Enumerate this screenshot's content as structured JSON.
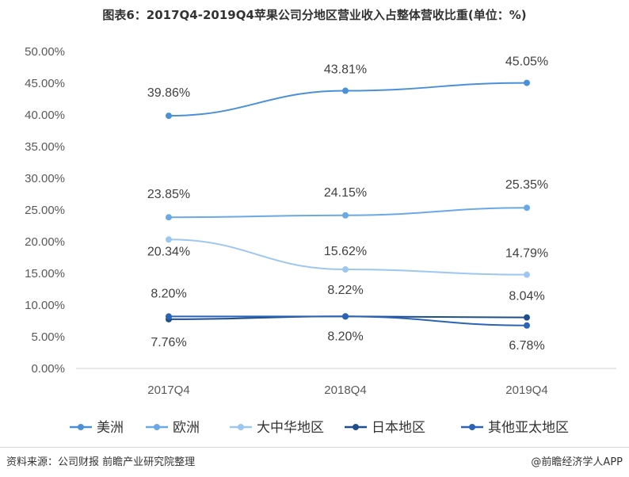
{
  "title": "图表6：2017Q4-2019Q4苹果公司分地区营业收入占整体营收比重(单位：%)",
  "footer": {
    "source": "资料来源：公司财报 前瞻产业研究院整理",
    "brand": "@前瞻经济学人APP"
  },
  "chart_data": {
    "type": "line",
    "title": "图表6：2017Q4-2019Q4苹果公司分地区营业收入占整体营收比重(单位：%)",
    "x": [
      "2017Q4",
      "2018Q4",
      "2019Q4"
    ],
    "ylim": [
      0,
      50
    ],
    "yticks": [
      "0.00%",
      "5.00%",
      "10.00%",
      "15.00%",
      "20.00%",
      "25.00%",
      "30.00%",
      "35.00%",
      "40.00%",
      "45.00%",
      "50.00%"
    ],
    "grid": false,
    "legend_position": "bottom",
    "series": [
      {
        "name": "美洲",
        "values": [
          39.86,
          43.81,
          45.05
        ],
        "labels": [
          "39.86%",
          "43.81%",
          "45.05%"
        ],
        "color": "#4a90d9"
      },
      {
        "name": "欧洲",
        "values": [
          23.85,
          24.15,
          25.35
        ],
        "labels": [
          "23.85%",
          "24.15%",
          "25.35%"
        ],
        "color": "#6aa8e6"
      },
      {
        "name": "大中华地区",
        "values": [
          20.34,
          15.62,
          14.79
        ],
        "labels": [
          "20.34%",
          "15.62%",
          "14.79%"
        ],
        "color": "#9cc7f0"
      },
      {
        "name": "日本地区",
        "values": [
          7.76,
          8.22,
          8.04
        ],
        "labels": [
          "7.76%",
          "8.22%",
          "8.04%"
        ],
        "color": "#1f4e8c"
      },
      {
        "name": "其他亚太地区",
        "values": [
          8.2,
          8.2,
          6.78
        ],
        "labels": [
          "8.20%",
          "8.20%",
          "6.78%"
        ],
        "color": "#2a63b8"
      }
    ]
  }
}
